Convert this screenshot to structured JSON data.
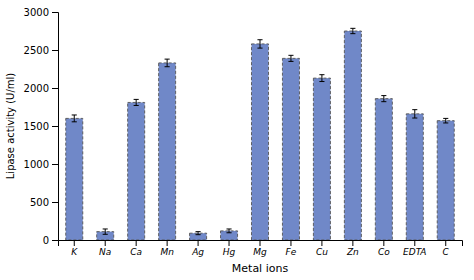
{
  "chart_data": {
    "type": "bar",
    "categories": [
      "K",
      "Na",
      "Ca",
      "Mn",
      "Ag",
      "Hg",
      "Mg",
      "Fe",
      "Cu",
      "Zn",
      "Co",
      "EDTA",
      "C"
    ],
    "values": [
      1600,
      110,
      1810,
      2330,
      90,
      120,
      2580,
      2390,
      2130,
      2750,
      1860,
      1660,
      1570
    ],
    "errors": [
      45,
      35,
      40,
      50,
      20,
      25,
      55,
      40,
      45,
      35,
      40,
      55,
      30
    ],
    "color": "#7088c8",
    "xlabel": "Metal ions",
    "ylabel": "Lipase activity (U/ml)",
    "ylim": [
      0,
      3000
    ],
    "yticks": [
      0,
      500,
      1000,
      1500,
      2000,
      2500,
      3000
    ],
    "grid": false
  }
}
